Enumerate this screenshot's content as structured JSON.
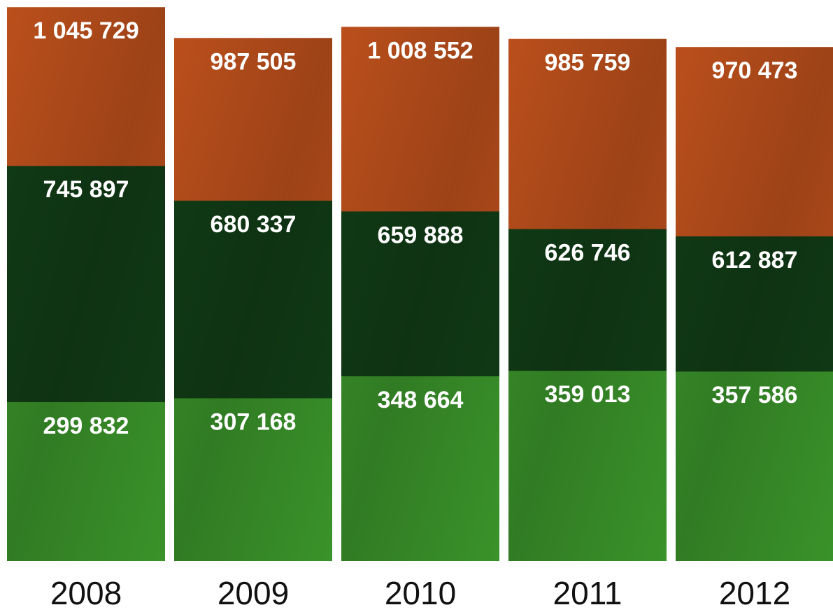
{
  "chart_data": {
    "type": "bar",
    "categories": [
      "2008",
      "2009",
      "2010",
      "2011",
      "2012"
    ],
    "ylim": [
      0,
      1050000
    ],
    "series": [
      {
        "color": "#c4531d",
        "values": [
          1045729,
          987505,
          1008552,
          985759,
          970473
        ],
        "value_labels": [
          "1 045 729",
          "987 505",
          "1 008 552",
          "985 759",
          "970 473"
        ]
      },
      {
        "color": "#123f17",
        "values": [
          745897,
          680337,
          659888,
          626746,
          612887
        ],
        "value_labels": [
          "745 897",
          "680 337",
          "659 888",
          "626 746",
          "612 887"
        ]
      },
      {
        "color": "#3d9a2c",
        "values": [
          299832,
          307168,
          348664,
          359013,
          357586
        ],
        "value_labels": [
          "299 832",
          "307 168",
          "348 664",
          "359 013",
          "357 586"
        ]
      }
    ]
  }
}
